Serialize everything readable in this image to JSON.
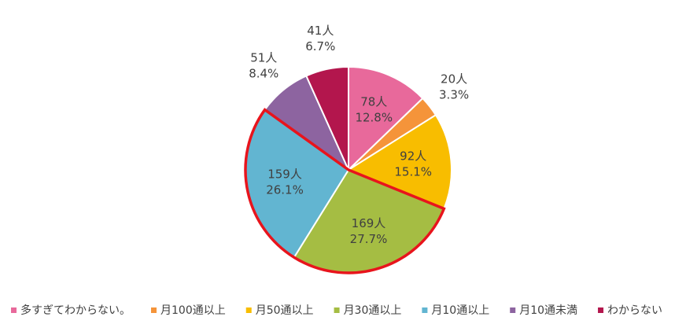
{
  "chart_data": {
    "type": "pie",
    "categories": [
      "多すぎてわからない。",
      "月100通以上",
      "月50通以上",
      "月30通以上",
      "月10通以上",
      "月10通未満",
      "わからない"
    ],
    "values": [
      78,
      20,
      92,
      169,
      159,
      51,
      41
    ],
    "value_labels": [
      "78人",
      "20人",
      "92人",
      "169人",
      "159人",
      "51人",
      "41人"
    ],
    "percentages": [
      12.8,
      3.3,
      15.1,
      27.7,
      26.1,
      8.4,
      6.7
    ],
    "percentage_labels": [
      "12.8%",
      "3.3%",
      "15.1%",
      "27.7%",
      "26.1%",
      "8.4%",
      "6.7%"
    ],
    "colors": [
      "#e8699b",
      "#f5943a",
      "#f8bd00",
      "#a5bd43",
      "#62b5d1",
      "#8d64a0",
      "#b3164d"
    ],
    "legend": "bottom"
  }
}
